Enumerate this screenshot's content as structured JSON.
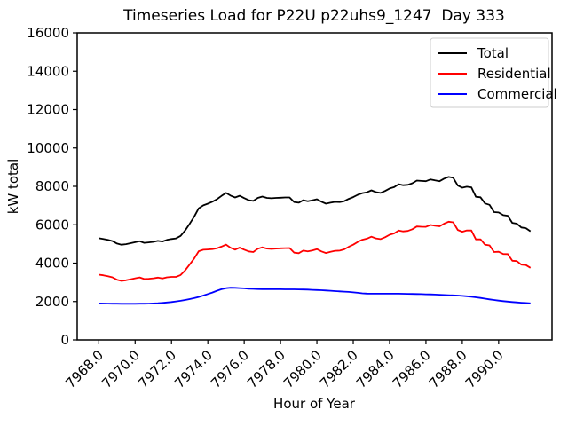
{
  "figure": {
    "background": "#ffffff"
  },
  "chart_data": {
    "type": "line",
    "title": "Timeseries Load for P22U p22uhs9_1247  Day 333",
    "xlabel": "Hour of Year",
    "ylabel": "kW total",
    "xlim": [
      7966.8125,
      7992.9375
    ],
    "ylim": [
      0,
      16000
    ],
    "grid": false,
    "x_start": 7968.0,
    "x_step": 0.25,
    "xticks": [
      7968.0,
      7970.0,
      7972.0,
      7974.0,
      7976.0,
      7978.0,
      7980.0,
      7982.0,
      7984.0,
      7986.0,
      7988.0,
      7990.0
    ],
    "xtick_labels": [
      "7968.0",
      "7970.0",
      "7972.0",
      "7974.0",
      "7976.0",
      "7978.0",
      "7980.0",
      "7982.0",
      "7984.0",
      "7986.0",
      "7988.0",
      "7990.0"
    ],
    "yticks": [
      0,
      2000,
      4000,
      6000,
      8000,
      10000,
      12000,
      14000,
      16000
    ],
    "ytick_labels": [
      "0",
      "2000",
      "4000",
      "6000",
      "8000",
      "10000",
      "12000",
      "14000",
      "16000"
    ],
    "legend": {
      "position": "upper right"
    },
    "series": [
      {
        "name": "Total",
        "color": "#000000",
        "values": [
          5300,
          5260,
          5210,
          5150,
          5020,
          4960,
          4990,
          5040,
          5090,
          5140,
          5060,
          5080,
          5110,
          5160,
          5130,
          5210,
          5260,
          5290,
          5420,
          5700,
          6050,
          6420,
          6860,
          7010,
          7100,
          7200,
          7330,
          7500,
          7660,
          7520,
          7420,
          7510,
          7390,
          7280,
          7240,
          7400,
          7470,
          7400,
          7380,
          7400,
          7410,
          7420,
          7420,
          7180,
          7150,
          7280,
          7230,
          7270,
          7330,
          7200,
          7100,
          7150,
          7190,
          7180,
          7230,
          7350,
          7440,
          7560,
          7650,
          7690,
          7790,
          7700,
          7660,
          7760,
          7890,
          7960,
          8110,
          8060,
          8080,
          8160,
          8300,
          8280,
          8270,
          8360,
          8310,
          8270,
          8400,
          8490,
          8450,
          8040,
          7930,
          7980,
          7950,
          7460,
          7430,
          7110,
          7040,
          6660,
          6640,
          6500,
          6470,
          6100,
          6060,
          5860,
          5820,
          5660
        ]
      },
      {
        "name": "Residential",
        "color": "#ff0000",
        "values": [
          3400,
          3365,
          3320,
          3262,
          3135,
          3077,
          3108,
          3158,
          3207,
          3255,
          3172,
          3188,
          3210,
          3248,
          3202,
          3260,
          3285,
          3285,
          3380,
          3620,
          3925,
          4240,
          4620,
          4700,
          4710,
          4730,
          4770,
          4860,
          4965,
          4800,
          4705,
          4810,
          4705,
          4610,
          4580,
          4750,
          4825,
          4758,
          4740,
          4760,
          4770,
          4782,
          4784,
          4546,
          4518,
          4652,
          4610,
          4660,
          4730,
          4612,
          4525,
          4590,
          4645,
          4650,
          4715,
          4850,
          4960,
          5105,
          5220,
          5275,
          5380,
          5292,
          5252,
          5352,
          5480,
          5550,
          5702,
          5655,
          5680,
          5765,
          5910,
          5895,
          5892,
          5990,
          5948,
          5918,
          6058,
          6158,
          6128,
          5730,
          5635,
          5705,
          5700,
          5240,
          5245,
          4960,
          4925,
          4580,
          4590,
          4478,
          4472,
          4125,
          4105,
          3922,
          3898,
          3755
        ]
      },
      {
        "name": "Commercial",
        "color": "#0000ff",
        "values": [
          1900,
          1895,
          1890,
          1888,
          1885,
          1883,
          1882,
          1882,
          1883,
          1885,
          1888,
          1892,
          1900,
          1912,
          1928,
          1950,
          1975,
          2005,
          2040,
          2080,
          2125,
          2180,
          2240,
          2310,
          2390,
          2470,
          2560,
          2640,
          2695,
          2720,
          2715,
          2700,
          2685,
          2670,
          2660,
          2650,
          2645,
          2642,
          2640,
          2640,
          2640,
          2638,
          2636,
          2634,
          2632,
          2628,
          2620,
          2610,
          2600,
          2588,
          2575,
          2560,
          2545,
          2530,
          2515,
          2500,
          2480,
          2455,
          2430,
          2415,
          2410,
          2408,
          2408,
          2408,
          2410,
          2410,
          2408,
          2405,
          2400,
          2395,
          2390,
          2385,
          2378,
          2370,
          2362,
          2352,
          2342,
          2332,
          2322,
          2310,
          2295,
          2275,
          2250,
          2220,
          2185,
          2150,
          2115,
          2080,
          2050,
          2022,
          1998,
          1975,
          1955,
          1938,
          1922,
          1905
        ]
      }
    ]
  }
}
